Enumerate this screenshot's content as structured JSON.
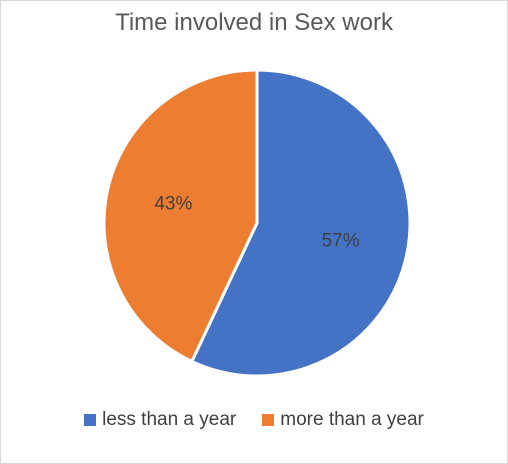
{
  "chart_data": {
    "type": "pie",
    "title": "Time involved in Sex work",
    "categories": [
      "less than a year",
      "more than a year"
    ],
    "values": [
      57,
      43
    ],
    "data_labels": [
      "57%",
      "43%"
    ],
    "colors": [
      "#4472c4",
      "#ed7d31"
    ],
    "legend_position": "bottom"
  }
}
